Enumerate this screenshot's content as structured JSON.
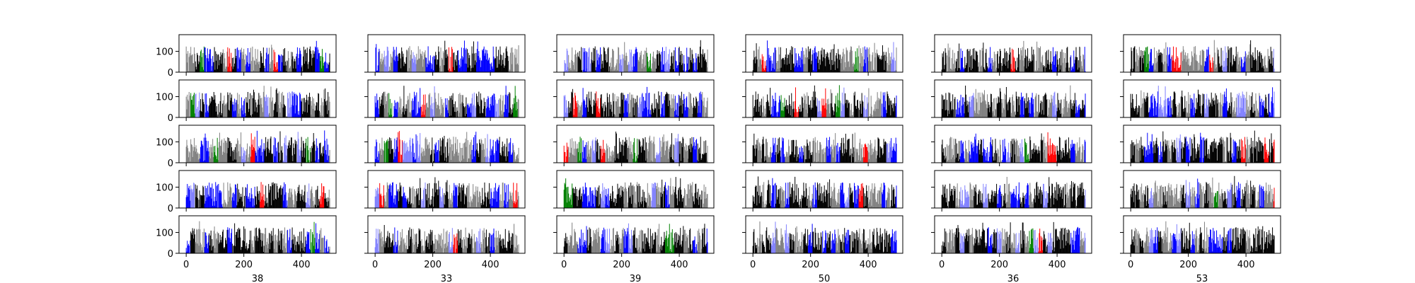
{
  "chart_data": {
    "type": "bar",
    "layout": {
      "rows": 5,
      "columns": 6
    },
    "x_axis": {
      "range": [
        -25,
        520
      ],
      "ticks": [
        0,
        200,
        400
      ],
      "tick_labels": [
        "0",
        "200",
        "400"
      ],
      "shown_on": "bottom-row"
    },
    "y_axis": {
      "range": [
        0,
        180
      ],
      "ticks": [
        0,
        100
      ],
      "tick_labels": [
        "0",
        "100"
      ],
      "shown_on": "first-column"
    },
    "column_labels": [
      "38",
      "33",
      "39",
      "50",
      "36",
      "53"
    ],
    "bars_per_panel": 500,
    "value_range_estimate": [
      0,
      160
    ],
    "bar_colors": [
      "#000000",
      "#808080",
      "#0000ff",
      "#8080ff",
      "#ff0000",
      "#008000"
    ],
    "grid": false,
    "legend": "none"
  }
}
